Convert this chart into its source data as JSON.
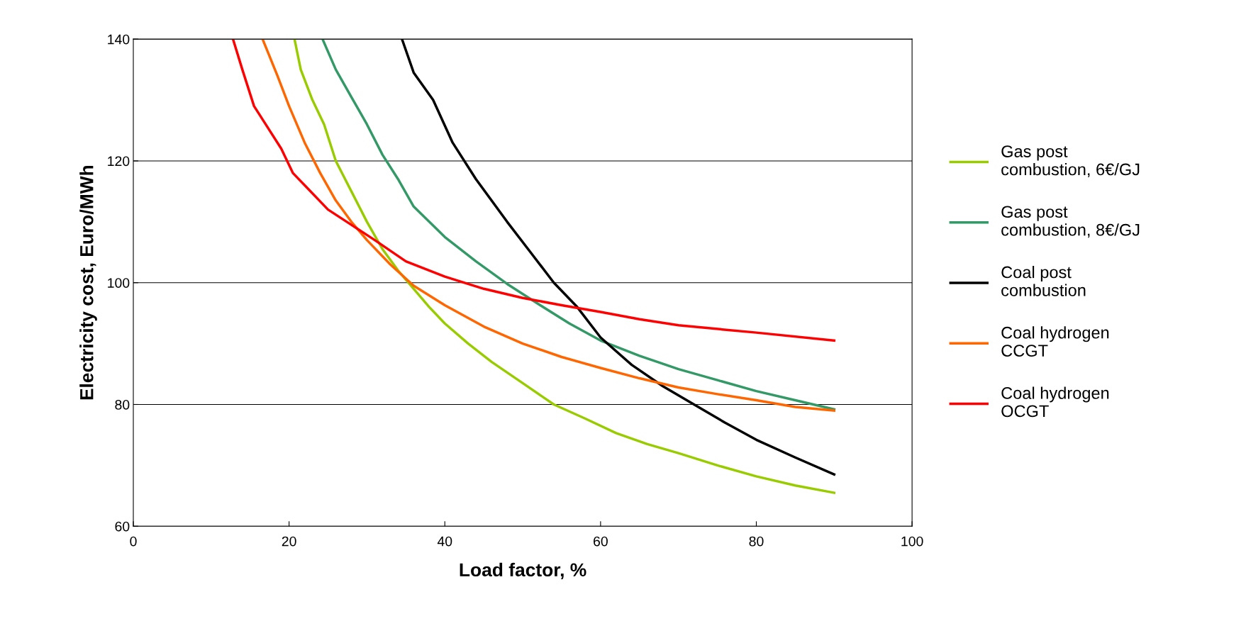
{
  "chart_data": {
    "type": "line",
    "xlabel": "Load factor, %",
    "ylabel": "Electricity cost, Euro/MWh",
    "xlim": [
      0,
      100
    ],
    "xticks": [
      0,
      20,
      40,
      60,
      80,
      100
    ],
    "ylim": [
      60,
      140
    ],
    "yticks": [
      60,
      80,
      100,
      120,
      140
    ],
    "grid": "y",
    "legend": "right",
    "marker": "none",
    "line_style": "solid",
    "series": [
      {
        "name": "Gas post\ncombustion, 6€/GJ",
        "color": "#99cc00",
        "x": [
          20.7,
          21.5,
          23,
          24.5,
          26,
          28,
          30,
          32,
          34,
          36,
          38,
          40,
          43,
          46,
          50,
          54,
          58,
          62,
          66,
          70,
          75,
          80,
          85,
          90
        ],
        "values": [
          140,
          135,
          130,
          126,
          120,
          115,
          110,
          105.5,
          102,
          99,
          96,
          93.3,
          90,
          87,
          83.5,
          80,
          77.7,
          75.3,
          73.5,
          72,
          70,
          68.2,
          66.7,
          65.5
        ]
      },
      {
        "name": "Gas post\ncombustion, 8€/GJ",
        "color": "#339966",
        "x": [
          24.3,
          26,
          28,
          30,
          32,
          34,
          36,
          40,
          44,
          48,
          52,
          56,
          60,
          65,
          70,
          75,
          80,
          85,
          90
        ],
        "values": [
          140,
          135,
          130.5,
          126,
          121,
          117,
          112.5,
          107.5,
          103.5,
          99.8,
          96.5,
          93.3,
          90.5,
          88,
          85.8,
          84,
          82.2,
          80.7,
          79.2
        ]
      },
      {
        "name": "Coal post\ncombustion",
        "color": "#000000",
        "x": [
          34.5,
          36,
          38.5,
          41,
          44,
          48,
          51,
          54,
          57,
          60,
          64,
          68,
          72,
          76,
          80,
          85,
          90
        ],
        "values": [
          140,
          134.5,
          130,
          123,
          117,
          110,
          105,
          100,
          96,
          91,
          86.5,
          83,
          80,
          77,
          74.2,
          71.3,
          68.5
        ]
      },
      {
        "name": "Coal hydrogen\nCCGT",
        "color": "#ff6600",
        "x": [
          16.6,
          18.5,
          20,
          22,
          24,
          26,
          28,
          30,
          33,
          36,
          40,
          45,
          50,
          55,
          60,
          65,
          70,
          75,
          80,
          85,
          90
        ],
        "values": [
          140,
          134,
          129,
          123,
          118,
          113.5,
          110,
          107,
          103,
          99.5,
          96.3,
          92.8,
          90,
          87.8,
          86,
          84.3,
          82.8,
          81.7,
          80.7,
          79.6,
          79
        ]
      },
      {
        "name": "Coal hydrogen\nOCGT",
        "color": "#ff0000",
        "x": [
          12.8,
          14,
          15.5,
          17,
          19,
          20.5,
          22,
          25,
          28,
          31,
          35,
          40,
          45,
          50,
          55,
          60,
          65,
          70,
          80,
          90
        ],
        "values": [
          140,
          135,
          129,
          126,
          122,
          118,
          116,
          112,
          109.5,
          107,
          103.5,
          101,
          99,
          97.5,
          96.3,
          95.2,
          94,
          93,
          91.8,
          90.5
        ]
      }
    ]
  }
}
